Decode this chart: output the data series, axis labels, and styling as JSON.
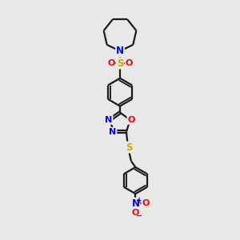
{
  "bg_color": "#e8e8e8",
  "bond_color": "#1a1a1a",
  "N_color": "#0000ff",
  "O_color": "#ff0000",
  "S_color": "#ccaa00",
  "line_width": 1.6,
  "fig_size": [
    3.0,
    3.0
  ],
  "dpi": 100,
  "xlim": [
    -1.5,
    1.5
  ],
  "ylim": [
    -5.5,
    5.5
  ]
}
